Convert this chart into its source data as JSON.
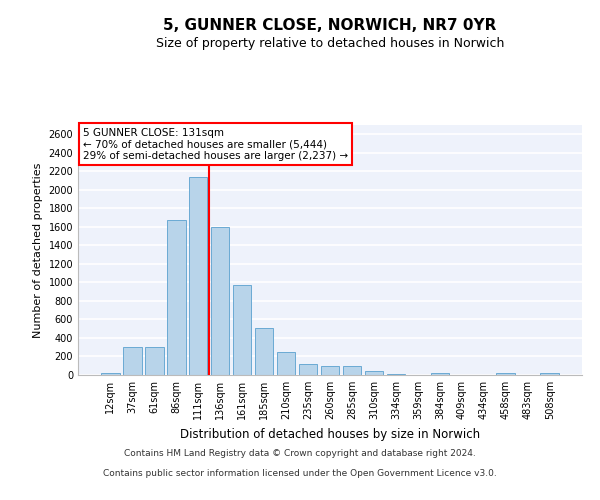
{
  "title": "5, GUNNER CLOSE, NORWICH, NR7 0YR",
  "subtitle": "Size of property relative to detached houses in Norwich",
  "xlabel": "Distribution of detached houses by size in Norwich",
  "ylabel": "Number of detached properties",
  "categories": [
    "12sqm",
    "37sqm",
    "61sqm",
    "86sqm",
    "111sqm",
    "136sqm",
    "161sqm",
    "185sqm",
    "210sqm",
    "235sqm",
    "260sqm",
    "285sqm",
    "310sqm",
    "334sqm",
    "359sqm",
    "384sqm",
    "409sqm",
    "434sqm",
    "458sqm",
    "483sqm",
    "508sqm"
  ],
  "values": [
    20,
    300,
    300,
    1670,
    2140,
    1600,
    970,
    510,
    245,
    120,
    100,
    95,
    40,
    15,
    5,
    20,
    5,
    5,
    20,
    5,
    20
  ],
  "bar_color": "#b8d4ea",
  "bar_edge_color": "#6aaad4",
  "vline_color": "red",
  "vline_position": 4.5,
  "annotation_text": "5 GUNNER CLOSE: 131sqm\n← 70% of detached houses are smaller (5,444)\n29% of semi-detached houses are larger (2,237) →",
  "annotation_box_color": "white",
  "annotation_box_edge_color": "red",
  "footer_line1": "Contains HM Land Registry data © Crown copyright and database right 2024.",
  "footer_line2": "Contains public sector information licensed under the Open Government Licence v3.0.",
  "ylim": [
    0,
    2700
  ],
  "yticks": [
    0,
    200,
    400,
    600,
    800,
    1000,
    1200,
    1400,
    1600,
    1800,
    2000,
    2200,
    2400,
    2600
  ],
  "bg_color": "#eef2fb",
  "grid_color": "white",
  "title_fontsize": 11,
  "subtitle_fontsize": 9,
  "ylabel_fontsize": 8,
  "xlabel_fontsize": 8.5,
  "tick_fontsize": 7,
  "annotation_fontsize": 7.5,
  "footer_fontsize": 6.5
}
